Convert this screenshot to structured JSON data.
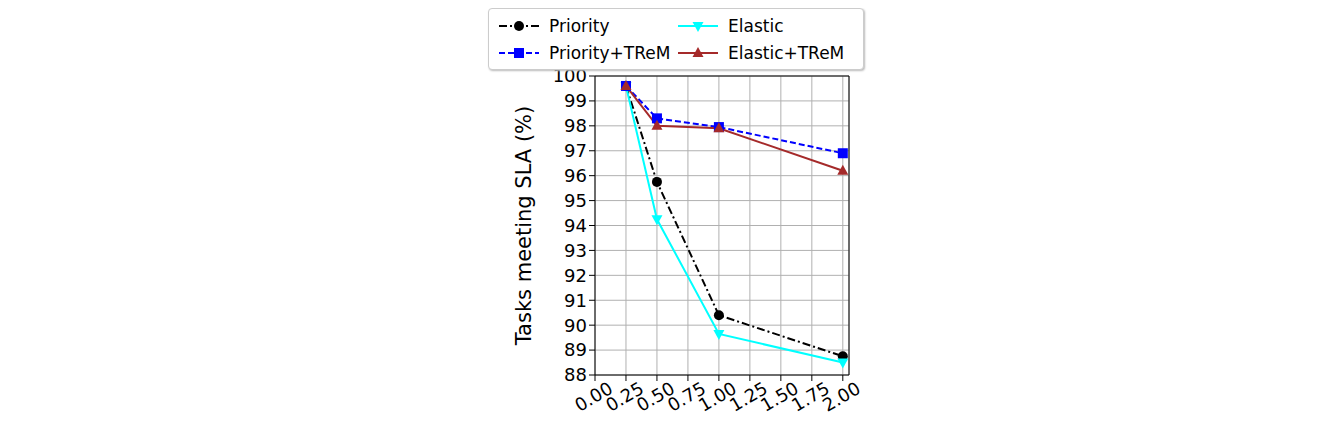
{
  "chart_data": {
    "type": "line",
    "y_label": "Tasks meeting SLA (%)",
    "x": [
      0.25,
      0.5,
      1.0,
      2.0
    ],
    "series": [
      {
        "name": "Priority",
        "color": "#000000",
        "marker": "circle",
        "line_style": "dashdot",
        "values": [
          99.6,
          95.75,
          90.4,
          88.75
        ]
      },
      {
        "name": "Elastic",
        "color": "#00ffff",
        "marker": "triangle_down",
        "line_style": "solid",
        "values": [
          99.6,
          94.25,
          89.65,
          88.5
        ]
      },
      {
        "name": "Priority+TReM",
        "color": "#0000ff",
        "marker": "square",
        "line_style": "dashed",
        "values": [
          99.6,
          98.3,
          97.95,
          96.9
        ]
      },
      {
        "name": "Elastic+TReM",
        "color": "#a52a2a",
        "marker": "triangle_up",
        "line_style": "solid",
        "values": [
          99.6,
          98.0,
          97.9,
          96.2
        ]
      }
    ],
    "xlim": [
      0,
      2.05
    ],
    "xticks": [
      {
        "value": 0,
        "label": "0.00"
      },
      {
        "value": 0.25,
        "label": "0.25"
      },
      {
        "value": 0.5,
        "label": "0.50"
      },
      {
        "value": 0.75,
        "label": "0.75"
      },
      {
        "value": 1.0,
        "label": "1.00"
      },
      {
        "value": 1.25,
        "label": "1.25"
      },
      {
        "value": 1.5,
        "label": "1.50"
      },
      {
        "value": 1.75,
        "label": "1.75"
      },
      {
        "value": 2.0,
        "label": "2.00"
      }
    ],
    "ylim": [
      88,
      100
    ],
    "yticks": [
      88,
      89,
      90,
      91,
      92,
      93,
      94,
      95,
      96,
      97,
      98,
      99,
      100
    ],
    "grid": true,
    "legend": "top"
  }
}
